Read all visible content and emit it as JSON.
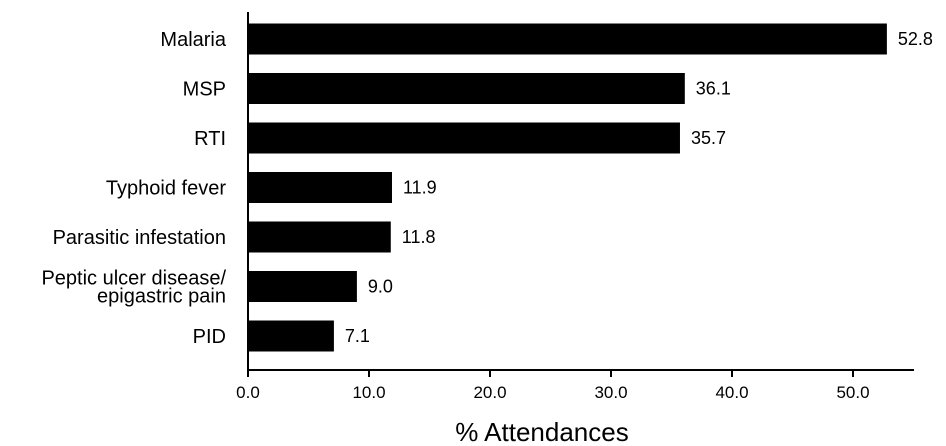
{
  "chart_data": {
    "type": "bar",
    "orientation": "horizontal",
    "categories": [
      "Malaria",
      "MSP",
      "RTI",
      "Typhoid fever",
      "Parasitic infestation",
      "Peptic ulcer disease/ epigastric pain",
      "PID"
    ],
    "category_lines": [
      [
        "Malaria"
      ],
      [
        "MSP"
      ],
      [
        "RTI"
      ],
      [
        "Typhoid fever"
      ],
      [
        "Parasitic infestation"
      ],
      [
        "Peptic ulcer disease/",
        "epigastric pain"
      ],
      [
        "PID"
      ]
    ],
    "values": [
      52.8,
      36.1,
      35.7,
      11.9,
      11.8,
      9.0,
      7.1
    ],
    "value_labels": [
      "52.8",
      "36.1",
      "35.7",
      "11.9",
      "11.8",
      "9.0",
      "7.1"
    ],
    "xlim": [
      0,
      55
    ],
    "xticks": [
      0,
      10,
      20,
      30,
      40,
      50
    ],
    "xtick_labels": [
      "0.0",
      "10.0",
      "20.0",
      "30.0",
      "40.0",
      "50.0"
    ],
    "xlabel": "% Attendances",
    "ylabel": "",
    "title": "",
    "grid": false,
    "bar_color": "#000000"
  }
}
